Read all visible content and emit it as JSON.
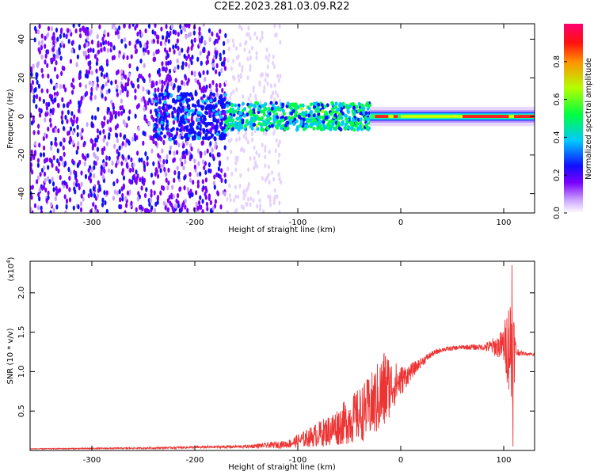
{
  "title": "C2E2.2023.281.03.09.R22",
  "chart_data": [
    {
      "type": "heatmap",
      "xlabel": "Height of straight line (km)",
      "ylabel": "Frequency (Hz)",
      "xlim": [
        -360,
        130
      ],
      "ylim": [
        -50,
        48
      ],
      "x_ticks": [
        -300,
        -200,
        -100,
        0,
        100
      ],
      "y_ticks": [
        -40,
        -20,
        0,
        20,
        40
      ],
      "colorbar": {
        "label": "Normalized spectral amplitude",
        "range": [
          0.0,
          1.0
        ],
        "ticks": [
          "0.0",
          "0.2",
          "0.4",
          "0.6",
          "0.8"
        ],
        "colormap": [
          "#ffffff",
          "#d8b8ff",
          "#7a00ff",
          "#0000ff",
          "#00d8ff",
          "#00ff40",
          "#c8ff00",
          "#ff8000",
          "#ff0000",
          "#ff0060"
        ]
      },
      "regions": [
        {
          "x_range": [
            -360,
            -170
          ],
          "description_level": 0.15,
          "freq_range": [
            -50,
            48
          ]
        },
        {
          "x_range": [
            -170,
            -30
          ],
          "description_level": 0.45,
          "freq_range": [
            -8,
            8
          ]
        },
        {
          "x_range": [
            -30,
            130
          ],
          "description_level": 0.75,
          "freq_range": [
            -2,
            2
          ]
        }
      ]
    },
    {
      "type": "line",
      "xlabel": "Height of straight line (km)",
      "ylabel": "SNR (10 * v/v)",
      "y_multiplier": "(x10",
      "y_multiplier_exp": "4",
      "y_multiplier_close": ")",
      "xlim": [
        -360,
        130
      ],
      "ylim": [
        0,
        2.4
      ],
      "x_ticks": [
        -300,
        -200,
        -100,
        0,
        100
      ],
      "y_ticks": [
        "0.5",
        "1.0",
        "1.5",
        "2.0"
      ],
      "color": "#ee3333",
      "envelope": {
        "x": [
          -360,
          -250,
          -150,
          -110,
          -90,
          -70,
          -50,
          -40,
          -30,
          -20,
          -15,
          -10,
          0,
          10,
          20,
          30,
          40,
          60,
          80,
          95,
          100,
          105,
          108,
          110,
          112,
          115,
          120,
          130
        ],
        "y": [
          0.02,
          0.03,
          0.05,
          0.08,
          0.16,
          0.25,
          0.38,
          0.45,
          0.55,
          0.68,
          0.78,
          0.82,
          0.88,
          1.0,
          1.12,
          1.22,
          1.28,
          1.31,
          1.31,
          1.32,
          1.33,
          1.34,
          1.3,
          1.28,
          1.25,
          1.24,
          1.23,
          1.22
        ],
        "noise": [
          0.005,
          0.01,
          0.02,
          0.05,
          0.12,
          0.2,
          0.3,
          0.35,
          0.4,
          0.5,
          0.55,
          0.35,
          0.2,
          0.1,
          0.06,
          0.04,
          0.03,
          0.03,
          0.04,
          0.15,
          0.25,
          0.6,
          0.9,
          0.5,
          0.1,
          0.03,
          0.02,
          0.02
        ]
      },
      "spikes": [
        {
          "x": -15,
          "y": 1.18
        },
        {
          "x": 105,
          "y": 1.55
        },
        {
          "x": 108,
          "y": 2.35
        },
        {
          "x": 109,
          "y": 0.05
        }
      ]
    }
  ]
}
